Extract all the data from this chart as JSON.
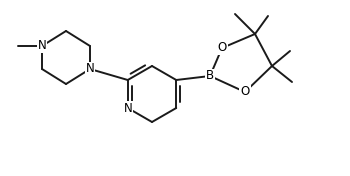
{
  "background_color": "#ffffff",
  "line_color": "#1a1a1a",
  "line_width": 1.4,
  "font_size": 8.5,
  "figsize": [
    3.5,
    1.76
  ],
  "dpi": 100,
  "xlim": [
    0,
    3.5
  ],
  "ylim": [
    0,
    1.76
  ]
}
